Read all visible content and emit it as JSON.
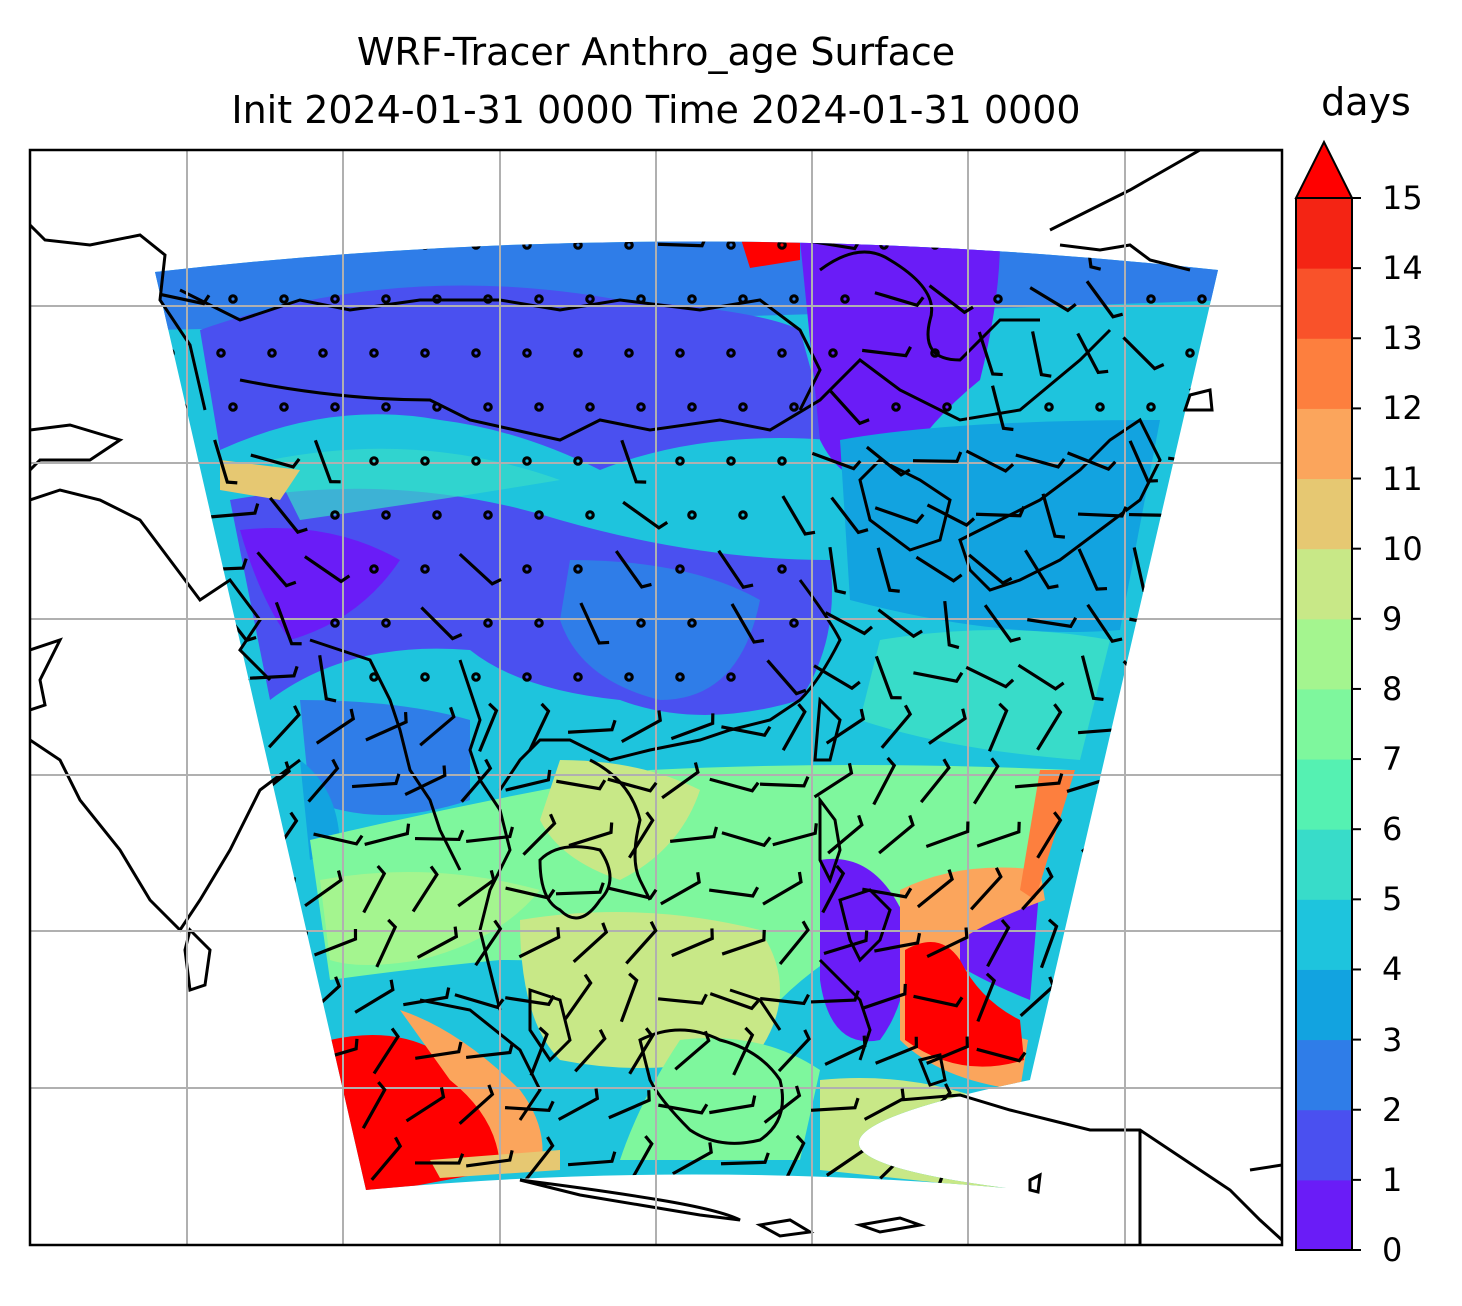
{
  "title_line1": "WRF-Tracer Anthro_age Surface",
  "title_line2": "Init 2024-01-31 0000 Time 2024-01-31 0000",
  "colorbar": {
    "label": "days",
    "ticks": [
      "0",
      "1",
      "2",
      "3",
      "4",
      "5",
      "6",
      "7",
      "8",
      "9",
      "10",
      "11",
      "12",
      "13",
      "14",
      "15"
    ],
    "colors": [
      "#6a1cf7",
      "#4a50f0",
      "#2f7de8",
      "#12a3e0",
      "#1ec4dd",
      "#38dcc9",
      "#55f1b2",
      "#7ef79d",
      "#a4f58f",
      "#c8e887",
      "#e6c872",
      "#fba55c",
      "#fd7f3e",
      "#f9522a",
      "#f42414",
      "#ff0000"
    ],
    "extend": "max"
  },
  "map": {
    "projection": "lambert-conformal",
    "gridlines": true,
    "region": "South and East Asia / Maritime Continent",
    "overlays": [
      "coastlines",
      "wind-barbs",
      "calm-circles"
    ]
  }
}
